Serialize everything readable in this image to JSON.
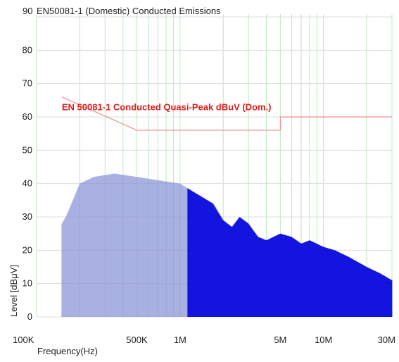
{
  "chart_data": {
    "type": "line",
    "title_prefix": "90",
    "title": "EN50081-1 (Domestic) Conducted Emissions",
    "xlabel": "Frequency(Hz)",
    "ylabel": "Level [dBμV]",
    "x_scale": "log",
    "xlim": [
      100000,
      30000000
    ],
    "ylim": [
      0,
      90
    ],
    "grid": true,
    "y_ticks": [
      0,
      10,
      20,
      30,
      40,
      50,
      60,
      70,
      80
    ],
    "y_tick_labels": [
      "0",
      "10",
      "20",
      "30",
      "40",
      "50",
      "60",
      "70",
      "80"
    ],
    "x_ticks": [
      100000,
      500000,
      1000000,
      5000000,
      10000000,
      30000000
    ],
    "x_tick_labels": [
      "100K",
      "500K",
      "1M",
      "5M",
      "10M",
      "30M"
    ],
    "colors": {
      "limit": "#f09090",
      "annotation": "#e31b1b",
      "emission": "#0000dd",
      "emission_light": "#8c96d8",
      "grid_v": "#b9ecb9",
      "grid_h": "#dcdcdc",
      "text": "#222222"
    },
    "annotation": {
      "text": "EN 50081-1 Conducted Quasi-Peak  dBuV  (Dom.)",
      "anchor_x": 150000,
      "anchor_y": 62
    },
    "series": [
      {
        "role": "limit",
        "x": [
          150000,
          500000,
          500000,
          5000000,
          5000000,
          30000000
        ],
        "y": [
          66,
          56,
          56,
          56,
          60,
          60
        ]
      },
      {
        "role": "emission_envelope",
        "x": [
          150000,
          160000,
          200000,
          250000,
          350000,
          500000,
          700000,
          1000000,
          1300000,
          1700000,
          2000000,
          2300000,
          2600000,
          3000000,
          3500000,
          4000000,
          5000000,
          6000000,
          7000000,
          8000000,
          10000000,
          12000000,
          15000000,
          20000000,
          25000000,
          30000000
        ],
        "y": [
          28,
          30,
          40,
          42,
          43,
          42,
          41,
          40,
          37,
          34,
          29,
          27,
          30,
          28,
          24,
          23,
          25,
          24,
          22,
          23,
          21,
          20,
          18,
          15,
          13,
          11
        ],
        "floor": [
          0,
          0,
          0,
          0,
          0,
          0,
          0,
          0,
          0,
          0,
          0,
          0,
          0,
          0,
          0,
          0,
          0,
          0,
          0,
          0,
          0,
          0,
          0,
          0,
          0,
          0
        ]
      }
    ]
  }
}
